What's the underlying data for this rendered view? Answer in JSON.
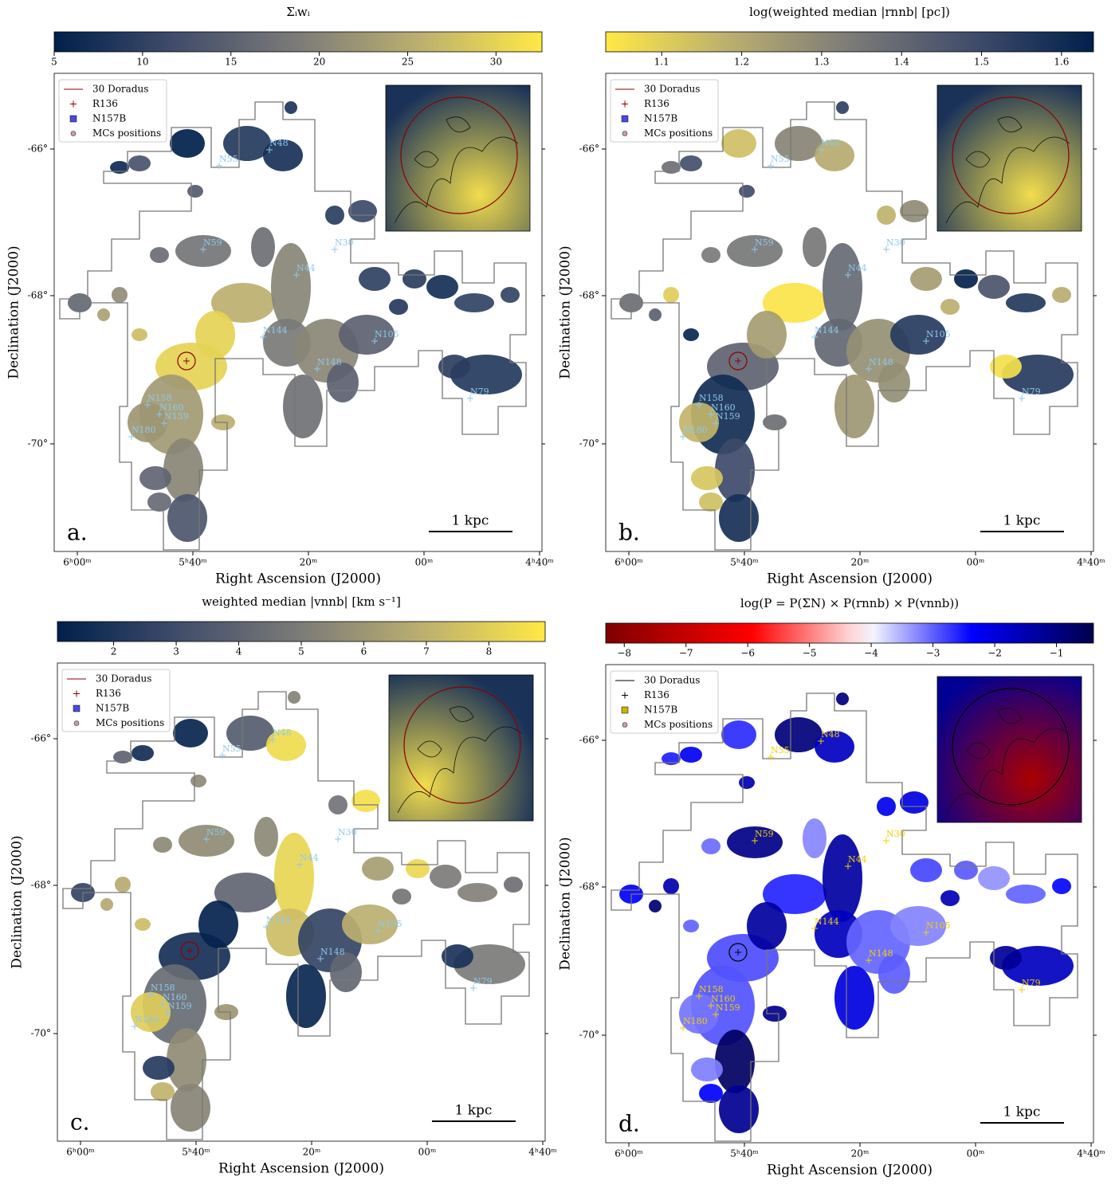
{
  "shared": {
    "x_label": "Right Ascension (J2000)",
    "y_label": "Declination (J2000)",
    "x_ticks": [
      "6ʰ00ᵐ",
      "5ʰ40ᵐ",
      "20ᵐ",
      "00ᵐ",
      "4ʰ40ᵐ"
    ],
    "y_ticks": [
      "-66°",
      "-68°",
      "-70°"
    ],
    "legend": [
      "30 Doradus",
      "R136",
      "N157B",
      "MCs positions"
    ],
    "regions": [
      "N55",
      "N48",
      "N59",
      "N30",
      "N44",
      "N144",
      "N105",
      "N148",
      "N158",
      "N160",
      "N159",
      "N180",
      "N79"
    ],
    "scale_bar": "1 kpc"
  },
  "panels": [
    {
      "letter": "a.",
      "colorbar": {
        "label": "Σᵢwᵢ",
        "range": [
          5,
          32.6
        ],
        "ticks": [
          5,
          10,
          15,
          20,
          25,
          30
        ],
        "colormap": "cividis"
      }
    },
    {
      "letter": "b.",
      "colorbar": {
        "label": "log(weighted median |rnnb| [pc])",
        "range": [
          1.03,
          1.64
        ],
        "ticks": [
          1.1,
          1.2,
          1.3,
          1.4,
          1.5,
          1.6
        ],
        "colormap": "cividis_r"
      }
    },
    {
      "letter": "c.",
      "colorbar": {
        "label": "weighted median |vnnb| [km s⁻¹]",
        "range": [
          1.1,
          8.9
        ],
        "ticks": [
          2,
          3,
          4,
          5,
          6,
          7,
          8
        ],
        "colormap": "cividis"
      }
    },
    {
      "letter": "d.",
      "colorbar": {
        "label": "log(P = P(ΣN) × P(rnnb) × P(vnnb))",
        "range": [
          -8.3,
          -0.4
        ],
        "ticks": [
          {
            "value": -8,
            "label": "−8"
          },
          {
            "value": -7,
            "label": "−7"
          },
          {
            "value": -6,
            "label": "−6"
          },
          {
            "value": -5,
            "label": "−5"
          },
          {
            "value": -4,
            "label": "−4"
          },
          {
            "value": -3,
            "label": "−3"
          },
          {
            "value": -2,
            "label": "−2"
          },
          {
            "value": -1,
            "label": "−1"
          }
        ],
        "colormap": "seismic"
      }
    }
  ]
}
